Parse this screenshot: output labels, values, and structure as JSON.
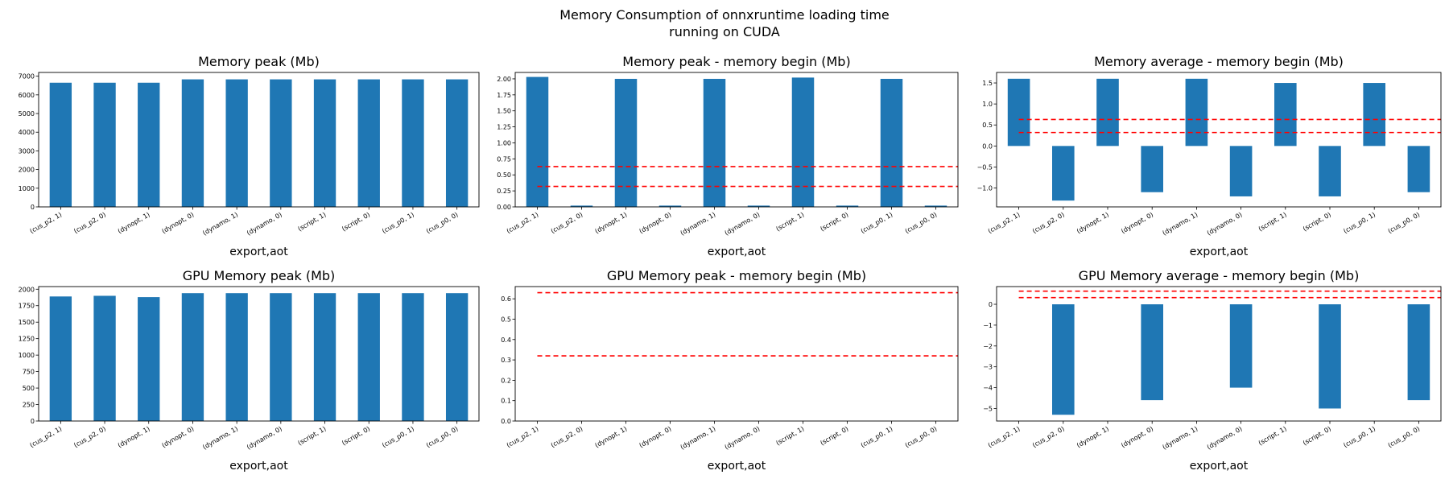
{
  "figure": {
    "title_line1": "Memory Consumption of onnxruntime loading time",
    "title_line2": "running on CUDA"
  },
  "colors": {
    "bar": "#1f77b4",
    "reference_line": "#ff0000"
  },
  "chart_data": [
    {
      "type": "bar",
      "title": "Memory peak (Mb)",
      "xlabel": "export,aot",
      "categories": [
        "(cus_p2, 1)",
        "(cus_p2, 0)",
        "(dynopt, 1)",
        "(dynopt, 0)",
        "(dynamo, 1)",
        "(dynamo, 0)",
        "(script, 1)",
        "(script, 0)",
        "(cus_p0, 1)",
        "(cus_p0, 0)"
      ],
      "values": [
        6650,
        6650,
        6650,
        6830,
        6830,
        6830,
        6830,
        6830,
        6830,
        6830
      ],
      "ylim": [
        0,
        7200
      ],
      "yticks": [
        0,
        1000,
        2000,
        3000,
        4000,
        5000,
        6000,
        7000
      ],
      "ref_lines": []
    },
    {
      "type": "bar",
      "title": "Memory peak - memory begin (Mb)",
      "xlabel": "export,aot",
      "categories": [
        "(cus_p2, 1)",
        "(cus_p2, 0)",
        "(dynopt, 1)",
        "(dynopt, 0)",
        "(dynamo, 1)",
        "(dynamo, 0)",
        "(script, 1)",
        "(script, 0)",
        "(cus_p0, 1)",
        "(cus_p0, 0)"
      ],
      "values": [
        2.03,
        0.02,
        2.0,
        0.02,
        2.0,
        0.02,
        2.02,
        0.02,
        2.0,
        0.02
      ],
      "ylim": [
        0,
        2.1
      ],
      "yticks": [
        0.0,
        0.25,
        0.5,
        0.75,
        1.0,
        1.25,
        1.5,
        1.75,
        2.0
      ],
      "ytick_labels": [
        "0.00",
        "0.25",
        "0.50",
        "0.75",
        "1.00",
        "1.25",
        "1.50",
        "1.75",
        "2.00"
      ],
      "ref_lines": [
        0.63,
        0.32
      ]
    },
    {
      "type": "bar",
      "title": "Memory average - memory begin (Mb)",
      "xlabel": "export,aot",
      "categories": [
        "(cus_p2, 1)",
        "(cus_p2, 0)",
        "(dynopt, 1)",
        "(dynopt, 0)",
        "(dynamo, 1)",
        "(dynamo, 0)",
        "(script, 1)",
        "(script, 0)",
        "(cus_p0, 1)",
        "(cus_p0, 0)"
      ],
      "values": [
        1.6,
        -1.3,
        1.6,
        -1.1,
        1.6,
        -1.2,
        1.5,
        -1.2,
        1.5,
        -1.1
      ],
      "ylim": [
        -1.45,
        1.75
      ],
      "yticks": [
        -1.0,
        -0.5,
        0.0,
        0.5,
        1.0,
        1.5
      ],
      "ytick_labels": [
        "−1.0",
        "−0.5",
        "0.0",
        "0.5",
        "1.0",
        "1.5"
      ],
      "ref_lines": [
        0.63,
        0.32
      ]
    },
    {
      "type": "bar",
      "title": "GPU Memory peak (Mb)",
      "xlabel": "export,aot",
      "categories": [
        "(cus_p2, 1)",
        "(cus_p2, 0)",
        "(dynopt, 1)",
        "(dynopt, 0)",
        "(dynamo, 1)",
        "(dynamo, 0)",
        "(script, 1)",
        "(script, 0)",
        "(cus_p0, 1)",
        "(cus_p0, 0)"
      ],
      "values": [
        1890,
        1900,
        1880,
        1940,
        1940,
        1940,
        1940,
        1940,
        1940,
        1940
      ],
      "ylim": [
        0,
        2040
      ],
      "yticks": [
        0,
        250,
        500,
        750,
        1000,
        1250,
        1500,
        1750,
        2000
      ],
      "ref_lines": []
    },
    {
      "type": "bar",
      "title": "GPU Memory peak - memory begin (Mb)",
      "xlabel": "export,aot",
      "categories": [
        "(cus_p2, 1)",
        "(cus_p2, 0)",
        "(dynopt, 1)",
        "(dynopt, 0)",
        "(dynamo, 1)",
        "(dynamo, 0)",
        "(script, 1)",
        "(script, 0)",
        "(cus_p0, 1)",
        "(cus_p0, 0)"
      ],
      "values": [
        0,
        0,
        0,
        0,
        0,
        0,
        0,
        0,
        0,
        0
      ],
      "ylim": [
        0,
        0.66
      ],
      "yticks": [
        0.0,
        0.1,
        0.2,
        0.3,
        0.4,
        0.5,
        0.6
      ],
      "ytick_labels": [
        "0.0",
        "0.1",
        "0.2",
        "0.3",
        "0.4",
        "0.5",
        "0.6"
      ],
      "ref_lines": [
        0.63,
        0.32
      ]
    },
    {
      "type": "bar",
      "title": "GPU Memory average - memory begin (Mb)",
      "xlabel": "export,aot",
      "categories": [
        "(cus_p2, 1)",
        "(cus_p2, 0)",
        "(dynopt, 1)",
        "(dynopt, 0)",
        "(dynamo, 1)",
        "(dynamo, 0)",
        "(script, 1)",
        "(script, 0)",
        "(cus_p0, 1)",
        "(cus_p0, 0)"
      ],
      "values": [
        0,
        -5.3,
        0,
        -4.6,
        0,
        -4.0,
        0,
        -5.0,
        0,
        -4.6
      ],
      "ylim": [
        -5.6,
        0.85
      ],
      "yticks": [
        -5,
        -4,
        -3,
        -2,
        -1,
        0
      ],
      "ytick_labels": [
        "−5",
        "−4",
        "−3",
        "−2",
        "−1",
        "0"
      ],
      "ref_lines": [
        0.63,
        0.32
      ]
    }
  ]
}
